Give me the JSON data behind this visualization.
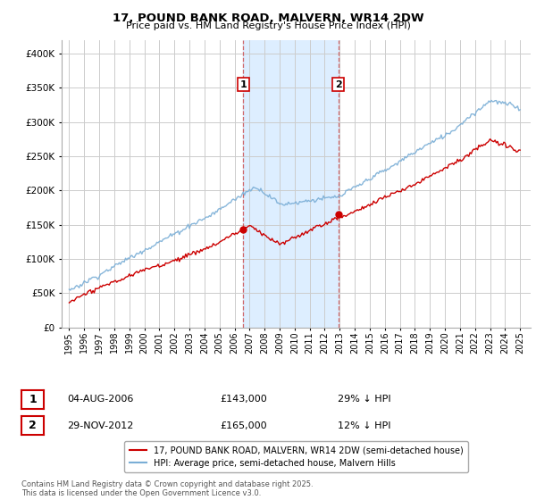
{
  "title": "17, POUND BANK ROAD, MALVERN, WR14 2DW",
  "subtitle": "Price paid vs. HM Land Registry's House Price Index (HPI)",
  "legend_label_red": "17, POUND BANK ROAD, MALVERN, WR14 2DW (semi-detached house)",
  "legend_label_blue": "HPI: Average price, semi-detached house, Malvern Hills",
  "annotation1_date": "04-AUG-2006",
  "annotation1_price": "£143,000",
  "annotation1_hpi": "29% ↓ HPI",
  "annotation2_date": "29-NOV-2012",
  "annotation2_price": "£165,000",
  "annotation2_hpi": "12% ↓ HPI",
  "footnote": "Contains HM Land Registry data © Crown copyright and database right 2025.\nThis data is licensed under the Open Government Licence v3.0.",
  "sale1_year": 2006.59,
  "sale1_value": 143000,
  "sale2_year": 2012.91,
  "sale2_value": 165000,
  "red_color": "#cc0000",
  "blue_color": "#7aaed6",
  "shade_color": "#ddeeff",
  "background_color": "#ffffff",
  "grid_color": "#cccccc",
  "ylim": [
    0,
    420000
  ],
  "xlim_start": 1994.5,
  "xlim_end": 2025.7,
  "yticks": [
    0,
    50000,
    100000,
    150000,
    200000,
    250000,
    300000,
    350000,
    400000
  ],
  "xticks": [
    1995,
    1996,
    1997,
    1998,
    1999,
    2000,
    2001,
    2002,
    2003,
    2004,
    2005,
    2006,
    2007,
    2008,
    2009,
    2010,
    2011,
    2012,
    2013,
    2014,
    2015,
    2016,
    2017,
    2018,
    2019,
    2020,
    2021,
    2022,
    2023,
    2024,
    2025
  ]
}
